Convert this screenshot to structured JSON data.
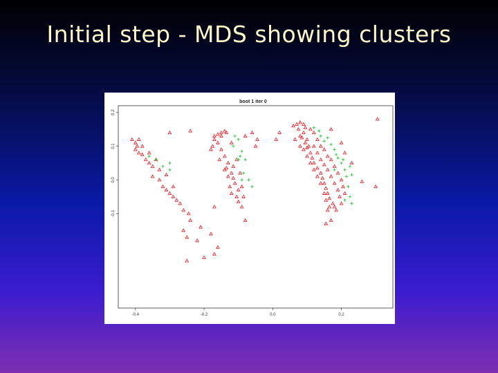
{
  "slide": {
    "title": "Initial step - MDS showing clusters",
    "background_top": "#000000",
    "background_bottom": "#7d2fb0",
    "title_color": "#fff7c9"
  },
  "chart_data": {
    "type": "scatter",
    "title": "boot 1 iter 0",
    "xlabel": "",
    "ylabel": "",
    "xlim": [
      -0.45,
      0.35
    ],
    "ylim": [
      -0.38,
      0.22
    ],
    "x_ticks": [
      "-0.4",
      "-0.2",
      "0.0",
      "0.2"
    ],
    "x_tick_values": [
      -0.4,
      -0.2,
      0.0,
      0.2
    ],
    "y_ticks": [
      "0.2",
      "0.1",
      "0.0",
      "-0.1"
    ],
    "y_tick_values": [
      0.2,
      0.1,
      0.0,
      -0.1
    ],
    "grid": false,
    "series": [
      {
        "marker": "triangle",
        "color": "#e0141a",
        "clusters": [
          {
            "points": [
              [
                -0.41,
                0.12
              ],
              [
                -0.4,
                0.11
              ],
              [
                -0.395,
                0.1
              ],
              [
                -0.4,
                0.09
              ],
              [
                -0.39,
                0.08
              ],
              [
                -0.38,
                0.075
              ],
              [
                -0.37,
                0.06
              ],
              [
                -0.36,
                0.05
              ],
              [
                -0.35,
                0.04
              ],
              [
                -0.33,
                0.03
              ],
              [
                -0.35,
                0.01
              ],
              [
                -0.33,
                0.0
              ],
              [
                -0.32,
                -0.02
              ],
              [
                -0.31,
                -0.03
              ],
              [
                -0.3,
                -0.04
              ],
              [
                -0.29,
                -0.05
              ],
              [
                -0.27,
                -0.07
              ],
              [
                -0.26,
                -0.09
              ],
              [
                -0.24,
                -0.12
              ],
              [
                -0.26,
                -0.15
              ],
              [
                -0.25,
                -0.17
              ],
              [
                -0.22,
                -0.18
              ],
              [
                -0.39,
                0.12
              ],
              [
                -0.38,
                0.1
              ],
              [
                -0.36,
                0.08
              ],
              [
                -0.34,
                0.06
              ],
              [
                -0.31,
                0.015
              ],
              [
                -0.29,
                -0.02
              ],
              [
                -0.28,
                -0.06
              ],
              [
                -0.245,
                -0.1
              ],
              [
                -0.21,
                -0.14
              ],
              [
                -0.18,
                -0.16
              ],
              [
                -0.17,
                -0.22
              ],
              [
                -0.25,
                -0.24
              ],
              [
                -0.2,
                -0.23
              ],
              [
                -0.3,
                0.14
              ],
              [
                -0.24,
                0.145
              ]
            ]
          },
          {
            "points": [
              [
                -0.17,
                0.13
              ],
              [
                -0.16,
                0.135
              ],
              [
                -0.15,
                0.14
              ],
              [
                -0.14,
                0.145
              ],
              [
                -0.135,
                0.14
              ],
              [
                -0.15,
                0.13
              ],
              [
                -0.17,
                0.12
              ],
              [
                -0.16,
                0.11
              ],
              [
                -0.175,
                0.1
              ],
              [
                -0.15,
                0.09
              ],
              [
                -0.14,
                0.07
              ],
              [
                -0.13,
                0.05
              ],
              [
                -0.135,
                0.035
              ],
              [
                -0.12,
                0.02
              ],
              [
                -0.115,
                0.005
              ],
              [
                -0.11,
                -0.01
              ],
              [
                -0.1,
                -0.03
              ],
              [
                -0.105,
                -0.05
              ],
              [
                -0.1,
                -0.065
              ],
              [
                -0.09,
                -0.08
              ],
              [
                -0.14,
                0.03
              ],
              [
                -0.13,
                0.01
              ],
              [
                -0.125,
                -0.02
              ],
              [
                -0.12,
                -0.04
              ],
              [
                -0.18,
                0.09
              ],
              [
                -0.155,
                0.06
              ],
              [
                -0.105,
                0.06
              ],
              [
                -0.115,
                0.04
              ],
              [
                -0.095,
                0.02
              ],
              [
                -0.09,
                -0.02
              ],
              [
                -0.085,
                -0.05
              ],
              [
                -0.08,
                0.13
              ],
              [
                -0.05,
                0.1
              ],
              [
                -0.045,
                0.12
              ],
              [
                -0.06,
                0.14
              ],
              [
                -0.08,
                -0.12
              ],
              [
                -0.16,
                -0.2
              ],
              [
                -0.17,
                -0.08
              ],
              [
                -0.12,
                0.11
              ]
            ]
          },
          {
            "points": [
              [
                0.07,
                0.165
              ],
              [
                0.08,
                0.17
              ],
              [
                0.09,
                0.165
              ],
              [
                0.095,
                0.155
              ],
              [
                0.09,
                0.14
              ],
              [
                0.085,
                0.125
              ],
              [
                0.095,
                0.11
              ],
              [
                0.1,
                0.095
              ],
              [
                0.11,
                0.08
              ],
              [
                0.115,
                0.065
              ],
              [
                0.12,
                0.05
              ],
              [
                0.13,
                0.035
              ],
              [
                0.14,
                0.02
              ],
              [
                0.145,
                0.005
              ],
              [
                0.15,
                -0.01
              ],
              [
                0.155,
                -0.025
              ],
              [
                0.16,
                -0.04
              ],
              [
                0.165,
                -0.055
              ],
              [
                0.175,
                -0.07
              ],
              [
                0.18,
                -0.08
              ],
              [
                0.185,
                -0.09
              ],
              [
                0.075,
                0.15
              ],
              [
                0.08,
                0.13
              ],
              [
                0.1,
                0.12
              ],
              [
                0.105,
                0.1
              ],
              [
                0.12,
                0.1
              ],
              [
                0.13,
                0.08
              ],
              [
                0.14,
                0.06
              ],
              [
                0.15,
                0.045
              ],
              [
                0.16,
                0.03
              ],
              [
                0.17,
                0.01
              ],
              [
                0.18,
                -0.01
              ],
              [
                0.19,
                -0.03
              ],
              [
                0.195,
                -0.05
              ],
              [
                0.2,
                -0.07
              ],
              [
                0.09,
                0.09
              ],
              [
                0.1,
                0.07
              ],
              [
                0.11,
                0.05
              ],
              [
                0.12,
                0.03
              ],
              [
                0.13,
                0.01
              ],
              [
                0.14,
                -0.01
              ],
              [
                0.15,
                -0.04
              ],
              [
                0.155,
                -0.06
              ],
              [
                0.165,
                -0.08
              ],
              [
                0.12,
                0.14
              ],
              [
                0.13,
                0.12
              ],
              [
                0.14,
                0.1
              ],
              [
                0.15,
                0.09
              ],
              [
                0.16,
                0.07
              ],
              [
                0.17,
                0.06
              ],
              [
                0.18,
                0.04
              ],
              [
                0.19,
                0.02
              ],
              [
                0.2,
                0.0
              ],
              [
                0.205,
                -0.02
              ],
              [
                0.21,
                -0.04
              ],
              [
                0.08,
                0.1
              ],
              [
                0.06,
                0.16
              ],
              [
                0.065,
                0.12
              ],
              [
                0.11,
                0.15
              ],
              [
                0.17,
                0.15
              ],
              [
                0.2,
                0.11
              ],
              [
                0.21,
                0.08
              ],
              [
                0.23,
                0.05
              ],
              [
                0.26,
                -0.005
              ],
              [
                0.305,
                0.18
              ],
              [
                0.3,
                -0.02
              ],
              [
                0.02,
                0.14
              ],
              [
                0.01,
                0.12
              ],
              [
                0.16,
                -0.09
              ],
              [
                0.155,
                -0.13
              ],
              [
                0.17,
                -0.12
              ]
            ]
          }
        ]
      },
      {
        "marker": "plus",
        "color": "#27c93a",
        "clusters": [
          {
            "points": [
              [
                -0.36,
                0.07
              ],
              [
                -0.34,
                0.06
              ],
              [
                -0.32,
                0.04
              ],
              [
                -0.3,
                0.05
              ],
              [
                -0.3,
                0.03
              ]
            ]
          },
          {
            "points": [
              [
                -0.11,
                0.13
              ],
              [
                -0.1,
                0.12
              ],
              [
                -0.115,
                0.1
              ],
              [
                -0.09,
                0.085
              ],
              [
                -0.095,
                0.07
              ],
              [
                -0.1,
                0.06
              ],
              [
                -0.08,
                0.06
              ],
              [
                -0.085,
                0.02
              ],
              [
                -0.07,
                0.0
              ],
              [
                -0.06,
                -0.02
              ],
              [
                -0.09,
                0.0
              ]
            ]
          },
          {
            "points": [
              [
                0.12,
                0.155
              ],
              [
                0.135,
                0.145
              ],
              [
                0.14,
                0.13
              ],
              [
                0.16,
                0.125
              ],
              [
                0.15,
                0.115
              ],
              [
                0.17,
                0.105
              ],
              [
                0.18,
                0.09
              ],
              [
                0.185,
                0.075
              ],
              [
                0.19,
                0.065
              ],
              [
                0.2,
                0.05
              ],
              [
                0.21,
                0.03
              ],
              [
                0.215,
                0.01
              ],
              [
                0.22,
                -0.02
              ],
              [
                0.225,
                -0.05
              ],
              [
                0.23,
                -0.07
              ],
              [
                0.205,
                0.06
              ],
              [
                0.225,
                0.04
              ],
              [
                0.23,
                0.015
              ],
              [
                0.21,
                -0.06
              ],
              [
                0.18,
                0.03
              ]
            ]
          }
        ]
      }
    ]
  }
}
